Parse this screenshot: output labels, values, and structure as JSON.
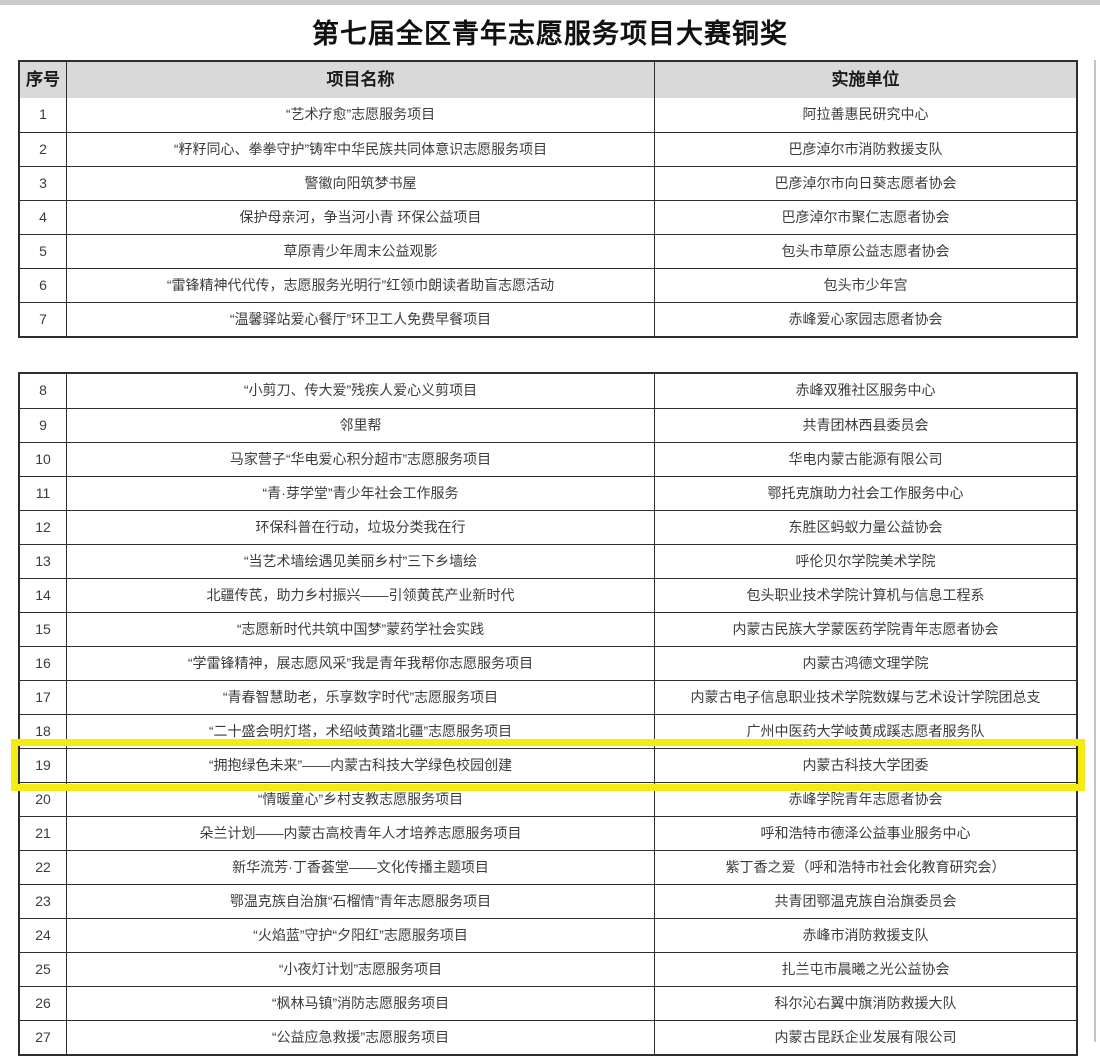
{
  "page": {
    "title": "第七届全区青年志愿服务项目大赛铜奖"
  },
  "table": {
    "headers": {
      "index": "序号",
      "project": "项目名称",
      "org": "实施单位"
    },
    "highlighted_row_number": "19",
    "section1_rows": [
      {
        "num": "1",
        "project": "“艺术疗愈”志愿服务项目",
        "org": "阿拉善惠民研究中心"
      },
      {
        "num": "2",
        "project": "“籽籽同心、拳拳守护”铸牢中华民族共同体意识志愿服务项目",
        "org": "巴彦淖尔市消防救援支队"
      },
      {
        "num": "3",
        "project": "警徽向阳筑梦书屋",
        "org": "巴彦淖尔市向日葵志愿者协会"
      },
      {
        "num": "4",
        "project": "保护母亲河，争当河小青 环保公益项目",
        "org": "巴彦淖尔市聚仁志愿者协会"
      },
      {
        "num": "5",
        "project": "草原青少年周末公益观影",
        "org": "包头市草原公益志愿者协会"
      },
      {
        "num": "6",
        "project": "“雷锋精神代代传，志愿服务光明行”红领巾朗读者助盲志愿活动",
        "org": "包头市少年宫"
      },
      {
        "num": "7",
        "project": "“温馨驿站爱心餐厅”环卫工人免费早餐项目",
        "org": "赤峰爱心家园志愿者协会"
      }
    ],
    "section2_rows": [
      {
        "num": "8",
        "project": "“小剪刀、传大爱”残疾人爱心义剪项目",
        "org": "赤峰双雅社区服务中心"
      },
      {
        "num": "9",
        "project": "邻里帮",
        "org": "共青团林西县委员会"
      },
      {
        "num": "10",
        "project": "马家营子“华电爱心积分超市”志愿服务项目",
        "org": "华电内蒙古能源有限公司"
      },
      {
        "num": "11",
        "project": "“青·芽学堂”青少年社会工作服务",
        "org": "鄂托克旗助力社会工作服务中心"
      },
      {
        "num": "12",
        "project": "环保科普在行动，垃圾分类我在行",
        "org": "东胜区蚂蚁力量公益协会"
      },
      {
        "num": "13",
        "project": "“当艺术墙绘遇见美丽乡村”三下乡墙绘",
        "org": "呼伦贝尔学院美术学院"
      },
      {
        "num": "14",
        "project": "北疆传芪，助力乡村振兴——引领黄芪产业新时代",
        "org": "包头职业技术学院计算机与信息工程系"
      },
      {
        "num": "15",
        "project": "“志愿新时代共筑中国梦”蒙药学社会实践",
        "org": "内蒙古民族大学蒙医药学院青年志愿者协会"
      },
      {
        "num": "16",
        "project": "“学雷锋精神，展志愿风采”我是青年我帮你志愿服务项目",
        "org": "内蒙古鸿德文理学院"
      },
      {
        "num": "17",
        "project": "“青春智慧助老，乐享数字时代”志愿服务项目",
        "org": "内蒙古电子信息职业技术学院数媒与艺术设计学院团总支"
      },
      {
        "num": "18",
        "project": "“二十盛会明灯塔，术绍岐黄踏北疆”志愿服务项目",
        "org": "广州中医药大学岐黄成蹊志愿者服务队"
      },
      {
        "num": "19",
        "project": "“拥抱绿色未来”——内蒙古科技大学绿色校园创建",
        "org": "内蒙古科技大学团委"
      },
      {
        "num": "20",
        "project": "“情暖童心”乡村支教志愿服务项目",
        "org": "赤峰学院青年志愿者协会"
      },
      {
        "num": "21",
        "project": "朵兰计划——内蒙古高校青年人才培养志愿服务项目",
        "org": "呼和浩特市德泽公益事业服务中心"
      },
      {
        "num": "22",
        "project": "新华流芳·丁香荟堂——文化传播主题项目",
        "org": "紫丁香之爱（呼和浩特市社会化教育研究会）"
      },
      {
        "num": "23",
        "project": "鄂温克族自治旗“石榴情”青年志愿服务项目",
        "org": "共青团鄂温克族自治旗委员会"
      },
      {
        "num": "24",
        "project": "“火焰蓝”守护“夕阳红”志愿服务项目",
        "org": "赤峰市消防救援支队"
      },
      {
        "num": "25",
        "project": "“小夜灯计划”志愿服务项目",
        "org": "扎兰屯市晨曦之光公益协会"
      },
      {
        "num": "26",
        "project": "“枫林马镇”消防志愿服务项目",
        "org": "科尔沁右翼中旗消防救援大队"
      },
      {
        "num": "27",
        "project": "“公益应急救援”志愿服务项目",
        "org": "内蒙古昆跃企业发展有限公司"
      }
    ]
  },
  "colors": {
    "header_bg": "#d9d9d9",
    "border": "#2e2e2e",
    "highlight_yellow": "#f3ec12",
    "body_text": "#3c3c3c"
  }
}
